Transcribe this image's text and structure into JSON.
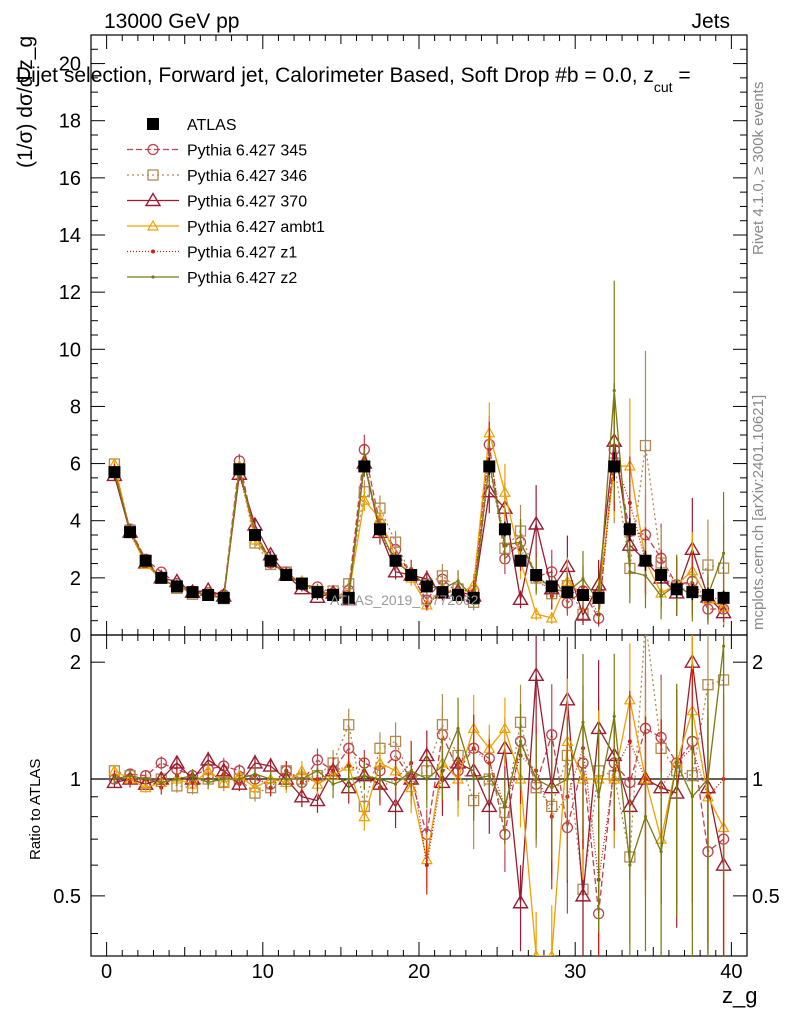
{
  "header": {
    "left": "13000 GeV pp",
    "right": "Jets",
    "title": "Dijet selection, Forward jet, Calorimeter Based, Soft Drop #b = 0.0, z",
    "title_sub": "cut",
    "title_end": " ="
  },
  "side_labels": {
    "rivet": "Rivet 4.1.0, ≥ 300k events",
    "mcplots": "mcplots.cern.ch [arXiv:2401.10621]"
  },
  "watermark": "ATLAS_2019_I1772062",
  "colors": {
    "atlas": "#000000",
    "p345": "#c0404f",
    "p346": "#b08a50",
    "p370": "#9b1b30",
    "ambt1": "#f0a000",
    "z1": "#d02010",
    "z2": "#7a7a10"
  },
  "chart_data": {
    "type": "line",
    "title": "Dijet selection, Forward jet, Calorimeter Based, Soft Drop #b = 0.0, z_cut =",
    "xlabel": "z_g",
    "ylabel": "(1/σ) dσ/d z_g",
    "ratio_ylabel": "Ratio to ATLAS",
    "xlim": [
      -1,
      41
    ],
    "ylim": [
      0,
      21
    ],
    "ratio_ylim": [
      0.35,
      2.35
    ],
    "xticks": [
      0,
      10,
      20,
      30,
      40
    ],
    "yticks": [
      0,
      2,
      4,
      6,
      8,
      10,
      12,
      14,
      16,
      18,
      20
    ],
    "ratio_yticks": [
      0.5,
      1,
      2
    ],
    "x": [
      0.5,
      1.5,
      2.5,
      3.5,
      4.5,
      5.5,
      6.5,
      7.5,
      8.5,
      9.5,
      10.5,
      11.5,
      12.5,
      13.5,
      14.5,
      15.5,
      16.5,
      17.5,
      18.5,
      19.5,
      20.5,
      21.5,
      22.5,
      23.5,
      24.5,
      25.5,
      26.5,
      27.5,
      28.5,
      29.5,
      30.5,
      31.5,
      32.5,
      33.5,
      34.5,
      35.5,
      36.5,
      37.5,
      38.5,
      39.5
    ],
    "atlas": {
      "name": "ATLAS",
      "values": [
        5.7,
        3.6,
        2.6,
        2.0,
        1.7,
        1.5,
        1.4,
        1.3,
        5.8,
        3.5,
        2.6,
        2.1,
        1.8,
        1.5,
        1.4,
        1.3,
        5.9,
        3.7,
        2.6,
        2.1,
        1.7,
        1.5,
        1.4,
        1.3,
        5.9,
        3.7,
        2.6,
        2.1,
        1.7,
        1.5,
        1.4,
        1.3,
        5.9,
        3.7,
        2.6,
        2.1,
        1.6,
        1.5,
        1.4,
        1.3
      ],
      "errors": [
        0.1,
        0.08,
        0.06,
        0.05,
        0.05,
        0.04,
        0.04,
        0.04,
        0.12,
        0.1,
        0.08,
        0.07,
        0.06,
        0.06,
        0.06,
        0.05,
        0.2,
        0.15,
        0.12,
        0.1,
        0.1,
        0.09,
        0.09,
        0.08,
        0.3,
        0.25,
        0.2,
        0.2,
        0.18,
        0.16,
        0.15,
        0.15,
        0.5,
        0.4,
        0.35,
        0.3,
        0.3,
        0.28,
        0.26,
        0.25
      ]
    },
    "series": [
      {
        "name": "Pythia 6.427 345",
        "key": "p345",
        "marker": "circle",
        "dash": "6,3",
        "ratio": [
          1.0,
          1.03,
          1.02,
          1.1,
          1.06,
          1.02,
          1.06,
          1.08,
          1.05,
          1.0,
          0.97,
          1.05,
          0.98,
          1.12,
          1.05,
          1.2,
          1.1,
          1.05,
          1.15,
          1.0,
          0.72,
          1.3,
          1.05,
          1.2,
          1.13,
          0.72,
          1.25,
          0.97,
          1.3,
          0.75,
          1.1,
          0.45,
          1.1,
          0.98,
          1.35,
          1.28,
          1.1,
          1.25,
          0.65,
          0.7
        ],
        "errors": [
          0.03,
          0.03,
          0.03,
          0.04,
          0.04,
          0.04,
          0.04,
          0.05,
          0.04,
          0.05,
          0.05,
          0.06,
          0.06,
          0.07,
          0.08,
          0.09,
          0.08,
          0.1,
          0.12,
          0.14,
          0.16,
          0.18,
          0.2,
          0.22,
          0.15,
          0.2,
          0.25,
          0.3,
          0.35,
          0.4,
          0.45,
          0.5,
          0.3,
          0.35,
          0.4,
          0.45,
          0.5,
          0.55,
          0.6,
          0.65
        ]
      },
      {
        "name": "Pythia 6.427 346",
        "key": "p346",
        "marker": "square",
        "dash": "2,3",
        "ratio": [
          1.05,
          1.02,
          0.98,
          1.0,
          0.96,
          0.95,
          1.0,
          0.98,
          1.0,
          0.92,
          0.95,
          1.05,
          1.0,
          1.02,
          1.1,
          1.38,
          0.85,
          1.2,
          1.25,
          1.0,
          1.05,
          1.38,
          1.15,
          0.88,
          1.0,
          0.82,
          1.4,
          0.95,
          0.85,
          1.15,
          0.52,
          1.05,
          1.02,
          0.63,
          2.55,
          1.2,
          1.05,
          1.02,
          1.75,
          1.8
        ],
        "errors": [
          0.03,
          0.03,
          0.03,
          0.04,
          0.04,
          0.04,
          0.04,
          0.05,
          0.04,
          0.05,
          0.05,
          0.06,
          0.06,
          0.07,
          0.08,
          0.1,
          0.08,
          0.1,
          0.12,
          0.14,
          0.16,
          0.2,
          0.22,
          0.25,
          0.15,
          0.2,
          0.25,
          0.3,
          0.35,
          0.45,
          0.5,
          0.55,
          0.35,
          0.4,
          0.5,
          0.5,
          0.55,
          0.6,
          0.65,
          0.7
        ]
      },
      {
        "name": "Pythia 6.427 370",
        "key": "p370",
        "marker": "triangle",
        "dash": "",
        "ratio": [
          0.98,
          1.0,
          0.97,
          1.0,
          1.1,
          1.0,
          1.12,
          1.05,
          0.97,
          1.1,
          1.08,
          1.0,
          0.9,
          0.88,
          1.05,
          0.95,
          1.02,
          0.97,
          0.85,
          1.0,
          1.15,
          0.98,
          1.1,
          1.05,
          0.85,
          1.2,
          0.48,
          1.85,
          0.95,
          1.6,
          0.5,
          1.35,
          1.15,
          0.85,
          1.0,
          0.95,
          0.92,
          2.0,
          0.95,
          0.6
        ],
        "errors": [
          0.03,
          0.03,
          0.03,
          0.04,
          0.04,
          0.04,
          0.05,
          0.05,
          0.04,
          0.05,
          0.05,
          0.06,
          0.06,
          0.07,
          0.08,
          0.09,
          0.08,
          0.1,
          0.12,
          0.14,
          0.16,
          0.18,
          0.2,
          0.22,
          0.15,
          0.2,
          0.25,
          0.35,
          0.4,
          0.45,
          0.5,
          0.5,
          0.3,
          0.35,
          0.45,
          0.5,
          0.55,
          0.6,
          0.6,
          0.65
        ]
      },
      {
        "name": "Pythia 6.427 ambt1",
        "key": "ambt1",
        "marker": "otriangle",
        "dash": "",
        "ratio": [
          1.05,
          1.0,
          0.95,
          0.98,
          1.0,
          0.97,
          1.05,
          0.98,
          1.02,
          0.95,
          1.0,
          0.98,
          1.05,
          0.97,
          1.02,
          1.08,
          0.8,
          1.1,
          1.05,
          0.95,
          0.62,
          1.1,
          1.0,
          1.35,
          1.2,
          1.35,
          1.0,
          0.35,
          0.35,
          1.25,
          1.0,
          1.0,
          1.0,
          1.6,
          1.0,
          0.7,
          1.1,
          1.5,
          0.9,
          0.75
        ],
        "errors": [
          0.03,
          0.03,
          0.03,
          0.04,
          0.04,
          0.04,
          0.04,
          0.05,
          0.04,
          0.05,
          0.05,
          0.06,
          0.06,
          0.07,
          0.08,
          0.09,
          0.08,
          0.1,
          0.12,
          0.14,
          0.16,
          0.18,
          0.2,
          0.22,
          0.15,
          0.2,
          0.25,
          0.3,
          0.35,
          0.45,
          0.45,
          0.5,
          0.3,
          0.4,
          0.5,
          0.5,
          0.55,
          0.6,
          0.6,
          0.65
        ]
      },
      {
        "name": "Pythia 6.427 z1",
        "key": "z1",
        "marker": "dot",
        "dash": "1,2",
        "ratio": [
          1.02,
          0.98,
          1.0,
          0.95,
          1.02,
          0.98,
          1.0,
          1.03,
          0.97,
          1.02,
          0.95,
          1.05,
          0.98,
          1.0,
          1.05,
          1.08,
          1.05,
          0.95,
          1.0,
          1.1,
          0.6,
          1.05,
          1.1,
          1.2,
          1.1,
          0.85,
          1.15,
          1.05,
          0.8,
          0.9,
          1.2,
          0.55,
          1.05,
          1.25,
          1.0,
          0.95,
          1.1,
          1.2,
          0.9,
          1.0
        ],
        "errors": [
          0.03,
          0.03,
          0.03,
          0.04,
          0.04,
          0.04,
          0.04,
          0.05,
          0.04,
          0.05,
          0.05,
          0.06,
          0.06,
          0.07,
          0.08,
          0.09,
          0.08,
          0.1,
          0.12,
          0.14,
          0.16,
          0.18,
          0.2,
          0.22,
          0.15,
          0.2,
          0.25,
          0.3,
          0.35,
          0.4,
          0.45,
          0.5,
          0.3,
          0.35,
          0.45,
          0.5,
          0.55,
          0.6,
          0.6,
          0.65
        ]
      },
      {
        "name": "Pythia 6.427 z2",
        "key": "z2",
        "marker": "smalldot",
        "dash": "",
        "ratio": [
          1.0,
          1.02,
          1.0,
          0.98,
          1.0,
          1.02,
          0.98,
          1.0,
          1.0,
          1.03,
          1.0,
          1.0,
          1.0,
          1.05,
          0.97,
          1.0,
          1.02,
          1.0,
          0.97,
          1.05,
          1.0,
          1.08,
          1.35,
          1.0,
          1.02,
          0.85,
          1.25,
          1.0,
          0.95,
          1.0,
          1.4,
          0.9,
          1.45,
          0.6,
          0.8,
          0.65,
          1.1,
          0.9,
          1.0,
          2.2
        ],
        "errors": [
          0.03,
          0.03,
          0.03,
          0.04,
          0.04,
          0.04,
          0.04,
          0.05,
          0.04,
          0.05,
          0.05,
          0.06,
          0.06,
          0.07,
          0.08,
          0.09,
          0.08,
          0.1,
          0.12,
          0.14,
          0.16,
          0.18,
          0.2,
          0.22,
          0.15,
          0.2,
          0.25,
          0.3,
          0.35,
          0.45,
          0.5,
          0.55,
          0.45,
          0.5,
          0.55,
          0.6,
          0.6,
          0.65,
          0.7,
          0.75
        ]
      }
    ]
  }
}
